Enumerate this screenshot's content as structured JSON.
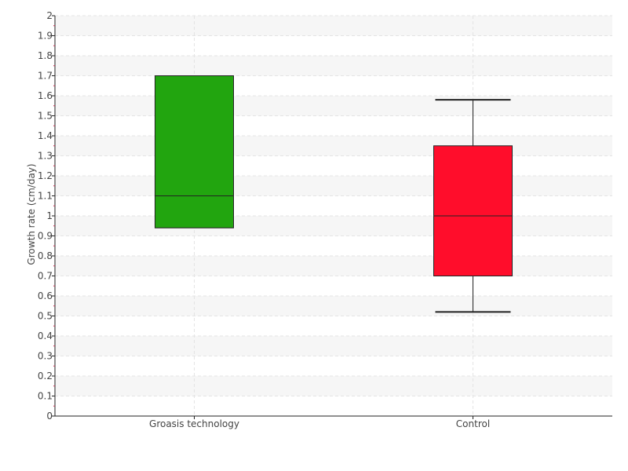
{
  "chart_data": {
    "type": "box",
    "title": "",
    "xlabel": "",
    "ylabel": "Growth rate (cm/day)",
    "ylim": [
      0,
      2
    ],
    "y_ticks": [
      "0",
      "0.1",
      "0.2",
      "0.3",
      "0.4",
      "0.5",
      "0.6",
      "0.7",
      "0.8",
      "0.9",
      "1",
      "1.1",
      "1.2",
      "1.3",
      "1.4",
      "1.5",
      "1.6",
      "1.7",
      "1.8",
      "1.9",
      "2"
    ],
    "grid": true,
    "legend": "none",
    "categories": [
      "Groasis technology",
      "Control"
    ],
    "boxes": [
      {
        "category": "Groasis technology",
        "min": 0.94,
        "q1": 0.94,
        "median": 1.1,
        "q3": 1.7,
        "max": 1.7,
        "color": "#22a50f"
      },
      {
        "category": "Control",
        "min": 0.52,
        "q1": 0.7,
        "median": 1.0,
        "q3": 1.35,
        "max": 1.58,
        "color": "#ff0d2b"
      }
    ]
  }
}
